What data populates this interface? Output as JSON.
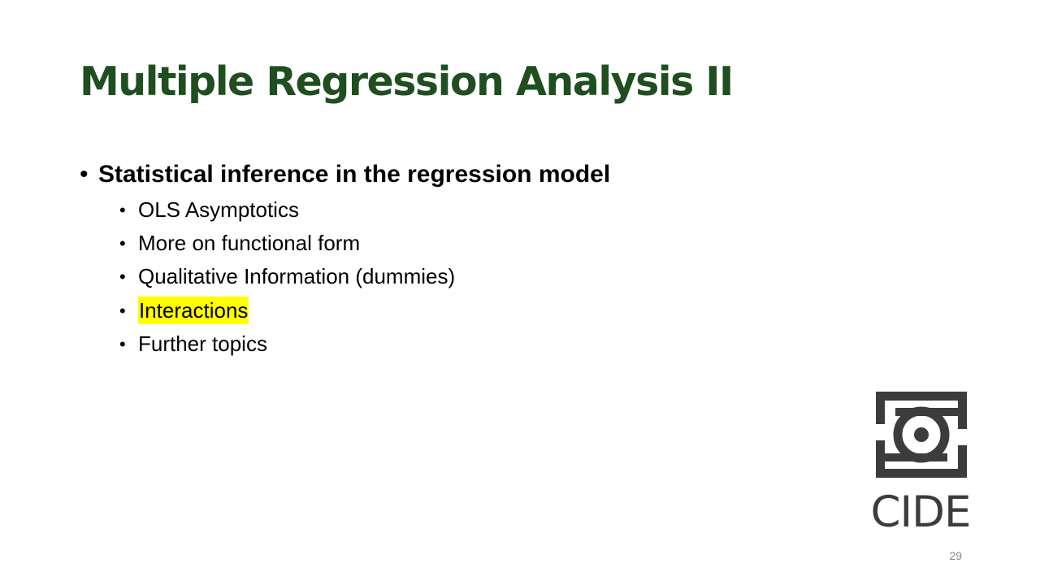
{
  "slide": {
    "title": "Multiple Regression Analysis II",
    "title_color": "#1f4e1f",
    "main_bullet": {
      "bullet": "•",
      "text": "Statistical inference in the regression model"
    },
    "sub_bullets": [
      {
        "bullet": "•",
        "text": "OLS Asymptotics",
        "highlighted": false
      },
      {
        "bullet": "•",
        "text": "More on functional form",
        "highlighted": false
      },
      {
        "bullet": "•",
        "text": "Qualitative Information (dummies)",
        "highlighted": false
      },
      {
        "bullet": "•",
        "text": "Interactions",
        "highlighted": true
      },
      {
        "bullet": "•",
        "text": "Further topics",
        "highlighted": false
      }
    ],
    "highlight_color": "#ffff00",
    "logo": {
      "icon": "cide-logo-icon",
      "text": "CIDE",
      "color": "#3c3c3c"
    },
    "slide_number": "29"
  }
}
